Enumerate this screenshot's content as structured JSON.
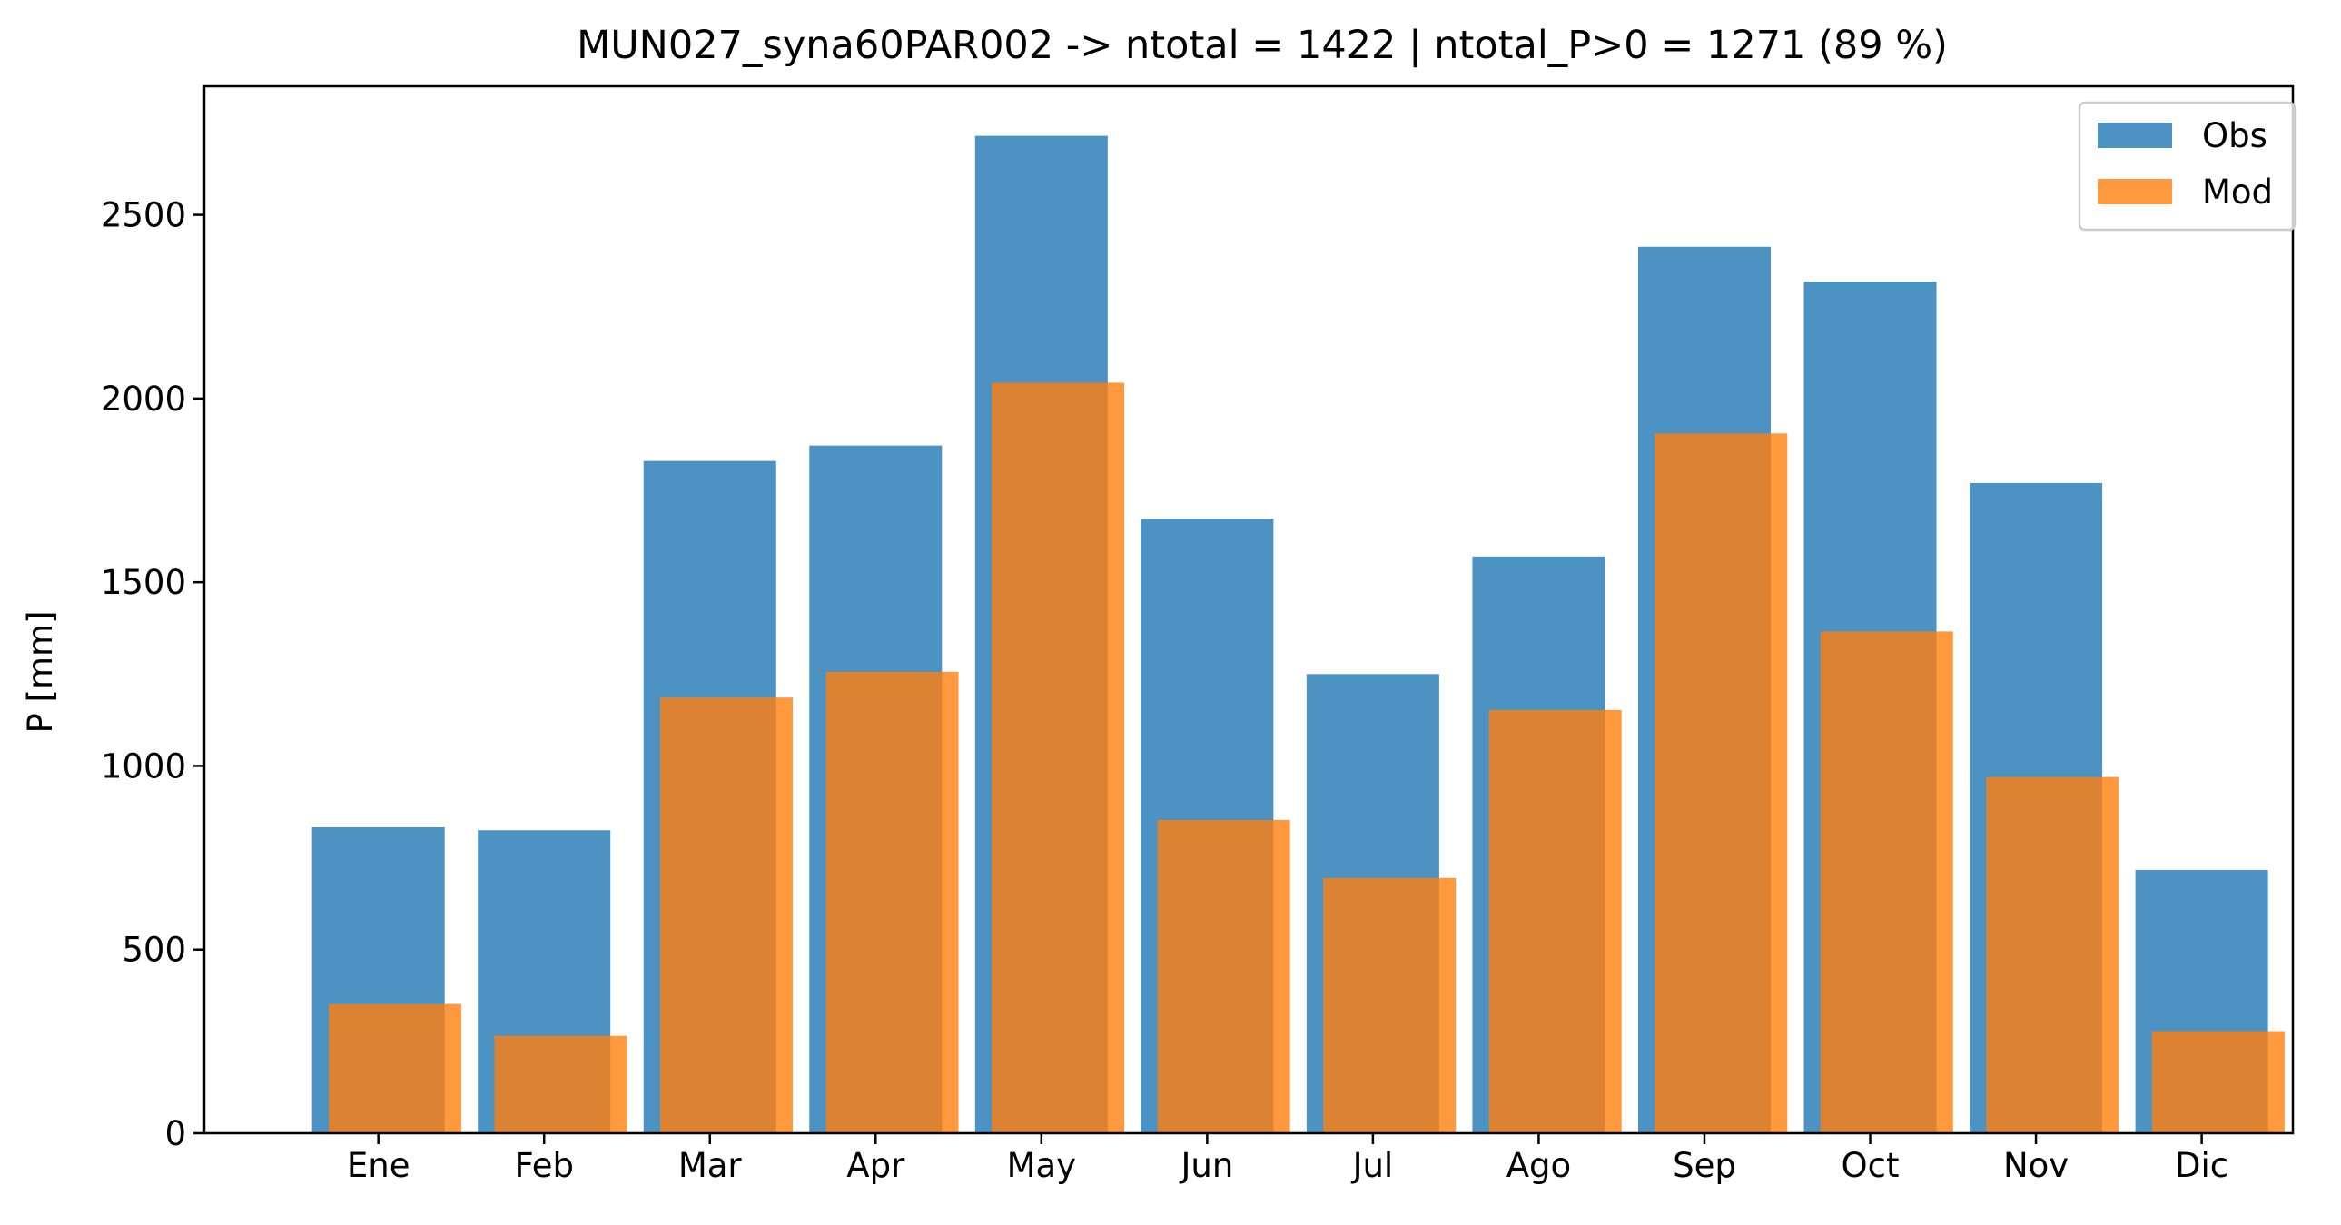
{
  "chart_data": {
    "type": "bar",
    "title": "MUN027_syna60PAR002 -> ntotal = 1422 | ntotal_P>0 = 1271 (89 %)",
    "xlabel": "",
    "ylabel": "P [mm]",
    "categories": [
      "Ene",
      "Feb",
      "Mar",
      "Apr",
      "May",
      "Jun",
      "Jul",
      "Ago",
      "Sep",
      "Oct",
      "Nov",
      "Dic"
    ],
    "series": [
      {
        "name": "Obs",
        "color": "#1f77b4",
        "values": [
          833,
          825,
          1830,
          1872,
          2715,
          1673,
          1250,
          1570,
          2413,
          2318,
          1770,
          717
        ]
      },
      {
        "name": "Mod",
        "color": "#ff7f0e",
        "values": [
          352,
          265,
          1186,
          1256,
          2043,
          853,
          695,
          1152,
          1905,
          1366,
          970,
          278
        ]
      }
    ],
    "ylim": [
      0,
      2850
    ],
    "yticks": [
      0,
      500,
      1000,
      1500,
      2000,
      2500
    ],
    "grid": false,
    "legend_position": "top-right",
    "bar_alpha": 0.8
  }
}
